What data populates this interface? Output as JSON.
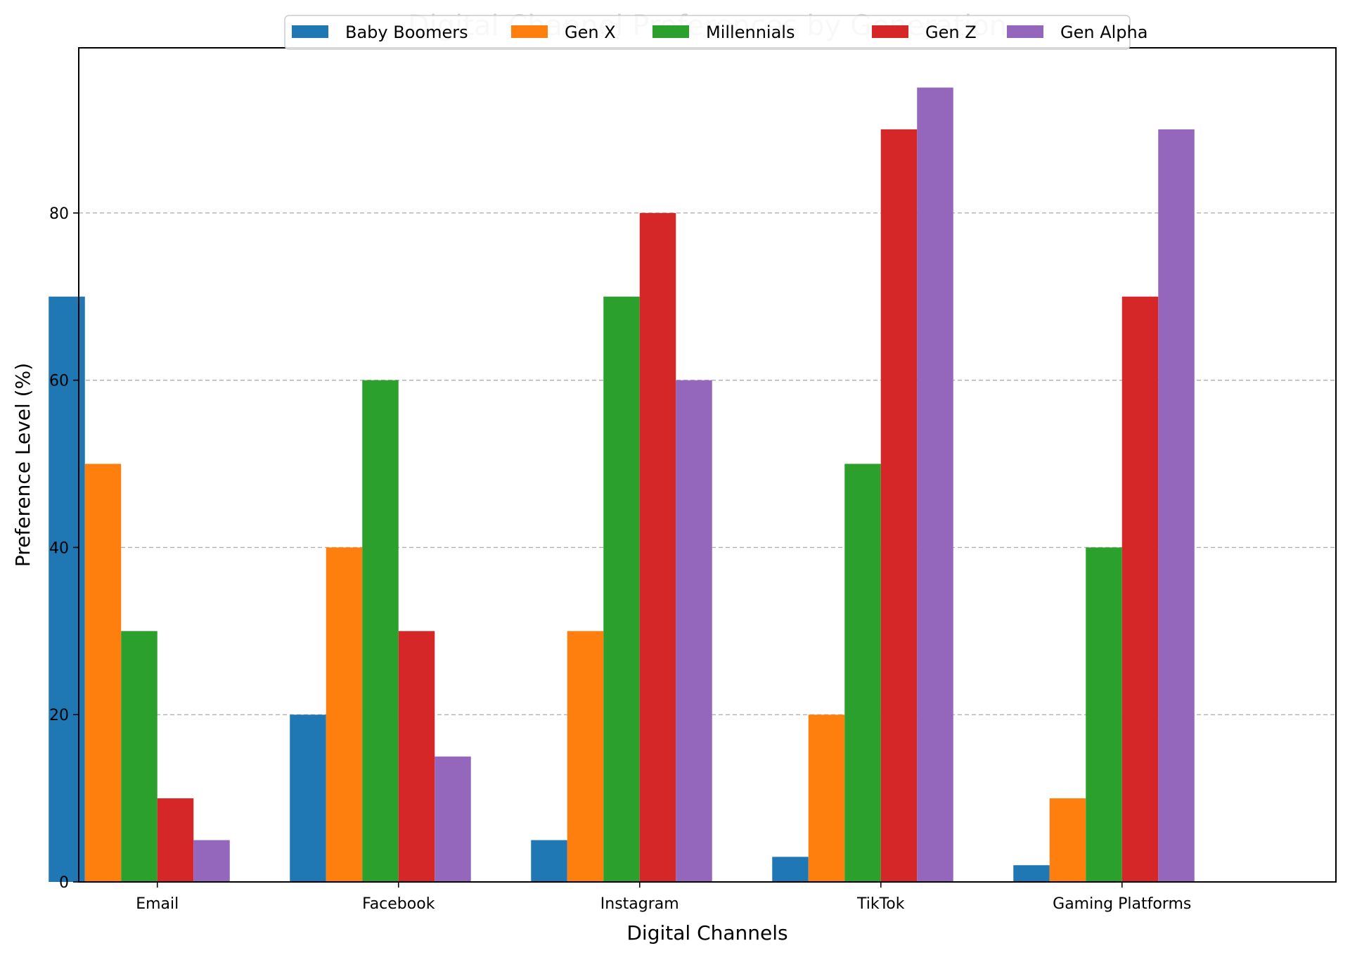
{
  "chart_data": {
    "type": "bar",
    "title": "Digital Channel Preferences by Generation",
    "xlabel": "Digital Channels",
    "ylabel": "Preference Level (%)",
    "categories": [
      "Email",
      "Facebook",
      "Instagram",
      "TikTok",
      "Gaming Platforms"
    ],
    "series": [
      {
        "name": "Baby Boomers",
        "color": "#1f77b4",
        "values": [
          70,
          20,
          5,
          3,
          2
        ]
      },
      {
        "name": "Gen X",
        "color": "#ff7f0e",
        "values": [
          50,
          40,
          30,
          20,
          10
        ]
      },
      {
        "name": "Millennials",
        "color": "#2ca02c",
        "values": [
          30,
          60,
          70,
          50,
          40
        ]
      },
      {
        "name": "Gen Z",
        "color": "#d62728",
        "values": [
          10,
          30,
          80,
          90,
          70
        ]
      },
      {
        "name": "Gen Alpha",
        "color": "#9467bd",
        "values": [
          5,
          15,
          60,
          95,
          90
        ]
      }
    ],
    "ylim": [
      0,
      99.75
    ],
    "yticks": [
      0,
      20,
      40,
      60,
      80
    ],
    "grid": "y-axis dashed",
    "legend_position": "top-center"
  }
}
